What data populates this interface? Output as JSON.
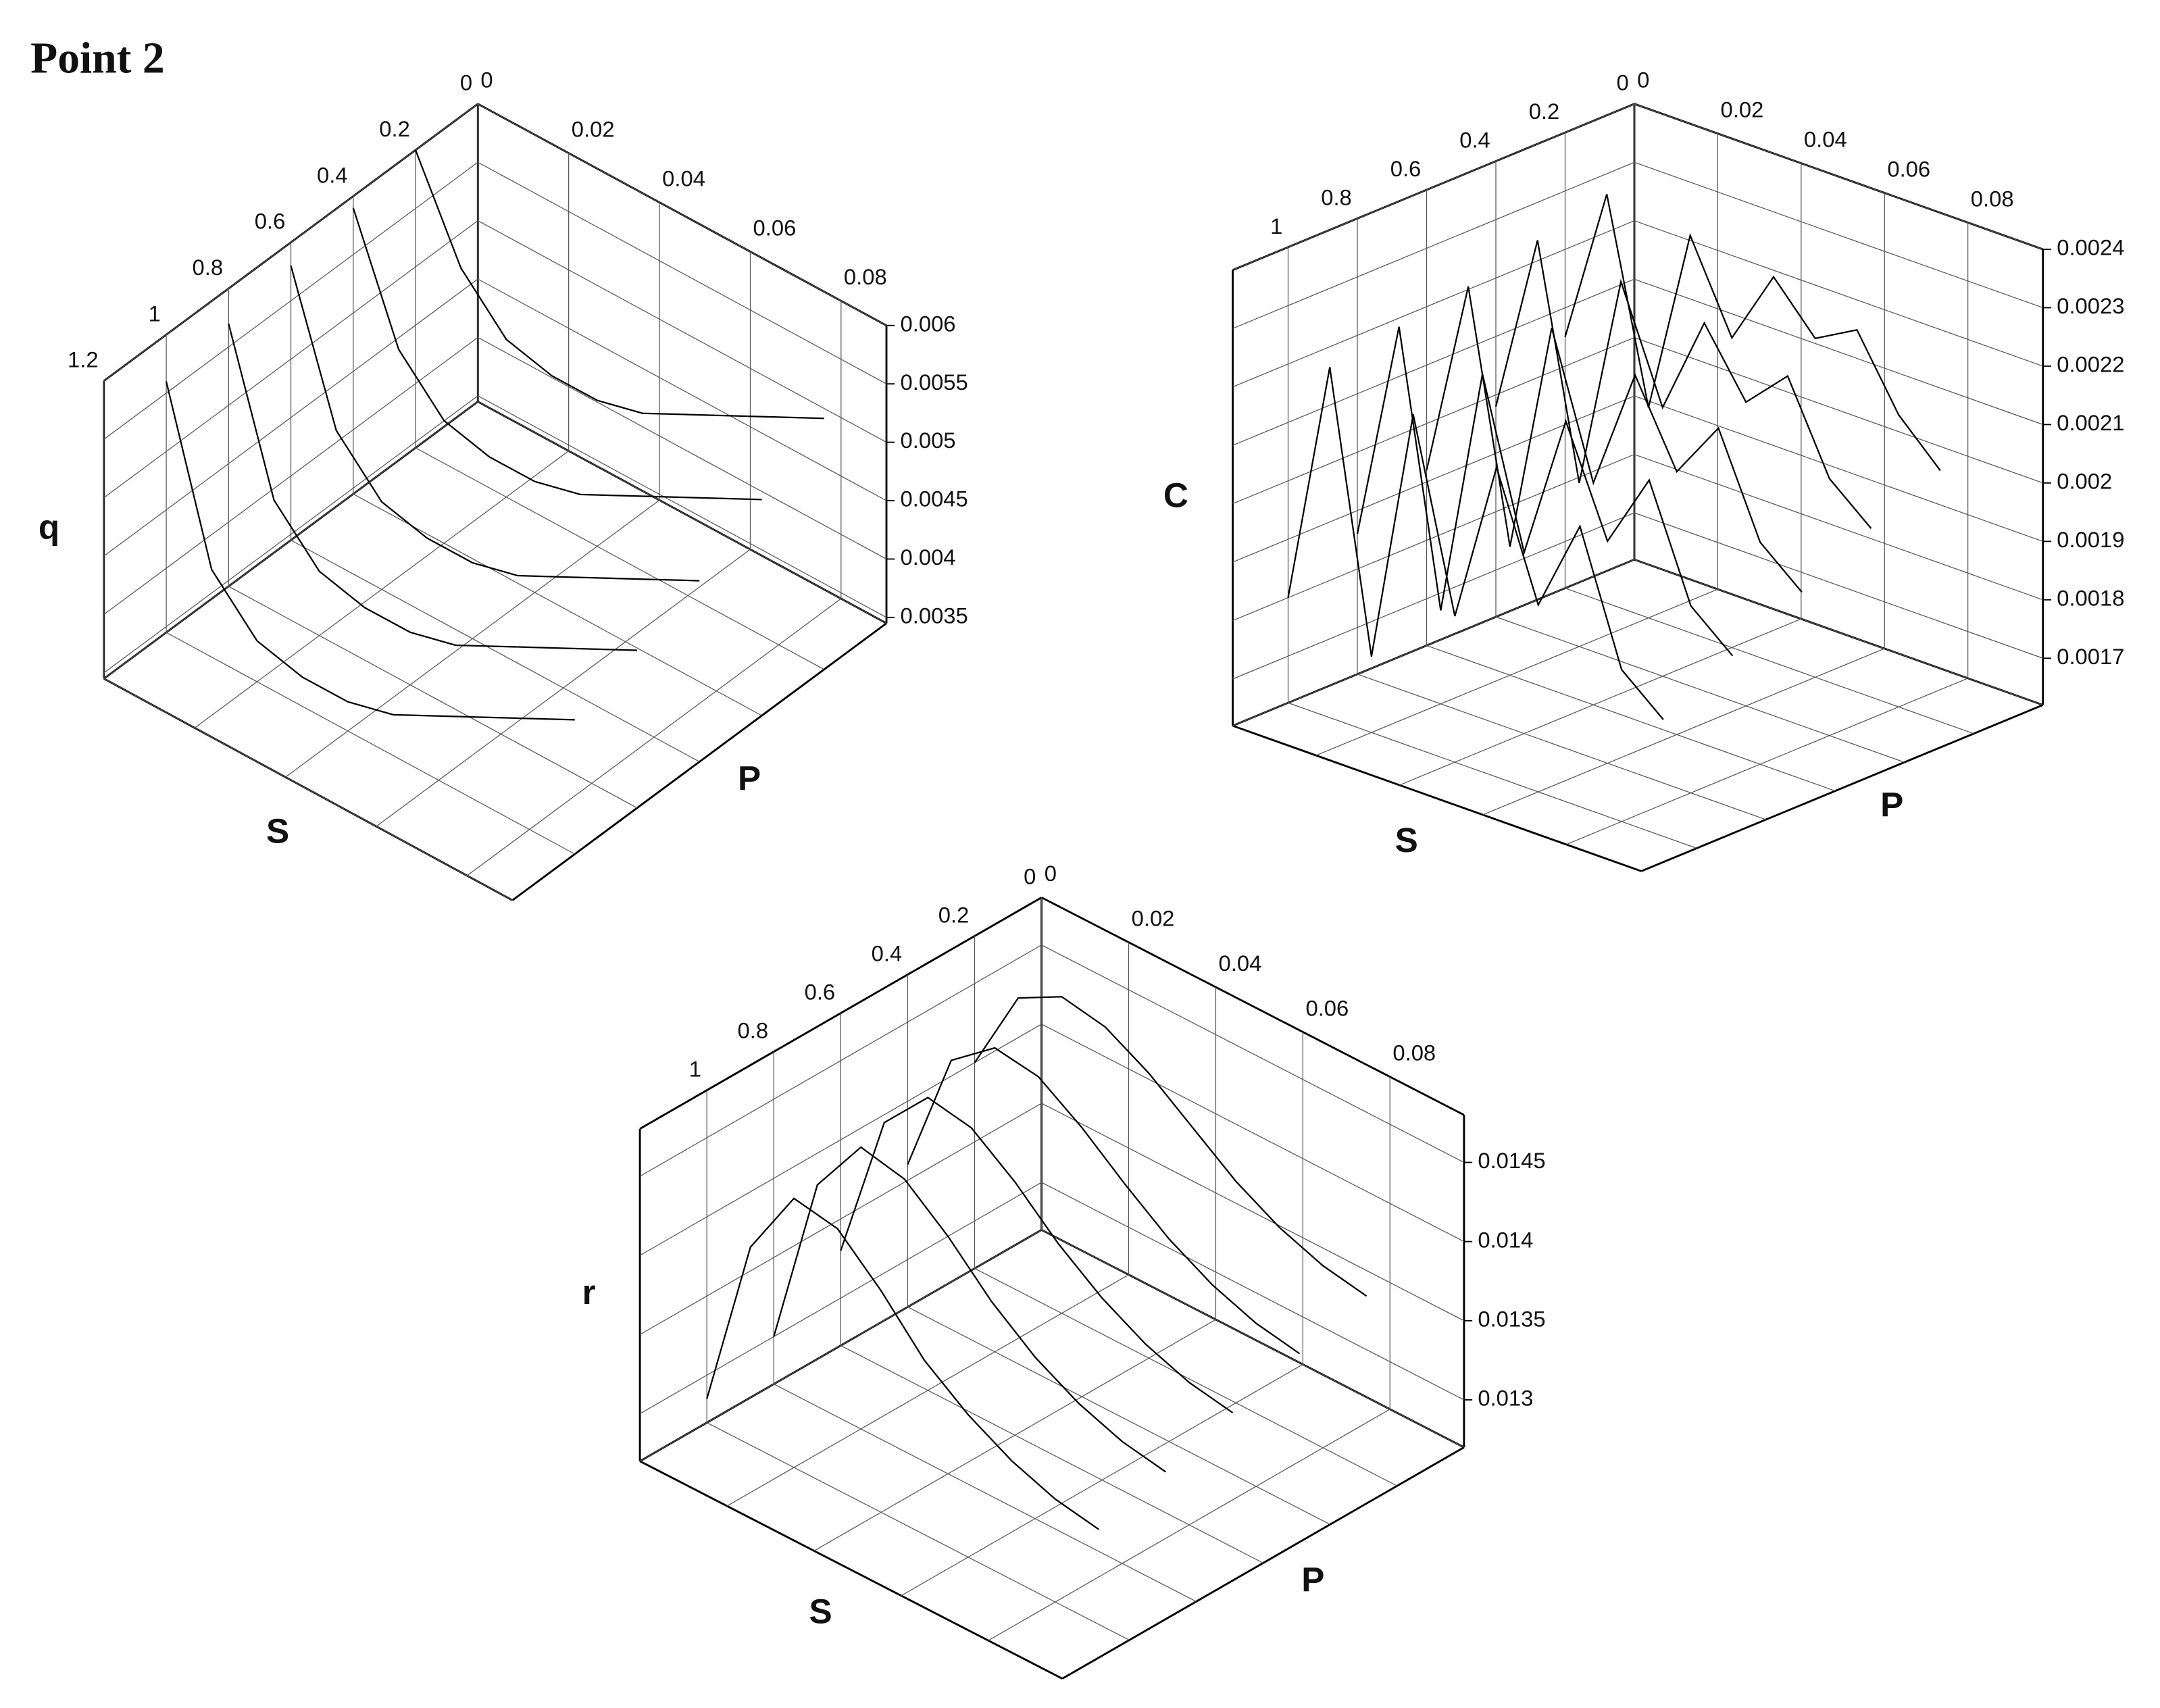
{
  "title": "Point 2",
  "chart_data": [
    {
      "type": "wireframe3d",
      "z_label": "q",
      "s_label": "S",
      "p_label": "P",
      "color": "#000000",
      "grid": true,
      "slim": [
        0,
        1.2
      ],
      "sticks": [
        0,
        0.2,
        0.4,
        0.6,
        0.8,
        1,
        1.2
      ],
      "plim": [
        0,
        0.09
      ],
      "pticks": [
        0,
        0.02,
        0.04,
        0.06,
        0.08
      ],
      "zlim": [
        0.00345,
        0.006
      ],
      "zticks": [
        0.0035,
        0.004,
        0.0045,
        0.005,
        0.0055,
        0.006
      ],
      "p": [
        0,
        0.01,
        0.02,
        0.03,
        0.04,
        0.05,
        0.06,
        0.07,
        0.08,
        0.09
      ],
      "s": [
        0.2,
        0.4,
        0.6,
        0.8,
        1
      ],
      "z": [
        [
          0.006,
          0.0052,
          0.0048,
          0.0047,
          0.0047,
          0.0048,
          0.005,
          0.0052,
          0.0054,
          0.0056
        ],
        [
          0.0059,
          0.0049,
          0.0045,
          0.0044,
          0.0044,
          0.0045,
          0.0047,
          0.0049,
          0.0051,
          0.0053
        ],
        [
          0.0058,
          0.0046,
          0.0042,
          0.0041,
          0.0041,
          0.0042,
          0.0044,
          0.0046,
          0.0048,
          0.005
        ],
        [
          0.0057,
          0.0044,
          0.004,
          0.0039,
          0.0039,
          0.004,
          0.0042,
          0.0044,
          0.0046,
          0.0048
        ],
        [
          0.0056,
          0.0042,
          0.0038,
          0.0037,
          0.0037,
          0.0038,
          0.004,
          0.0042,
          0.0044,
          0.0046
        ]
      ]
    },
    {
      "type": "wireframe3d",
      "z_label": "C",
      "s_label": "S",
      "p_label": "P",
      "color": "#000000",
      "grid": true,
      "slim": [
        0,
        1.16
      ],
      "sticks": [
        0,
        0.2,
        0.4,
        0.6,
        0.8,
        1
      ],
      "plim": [
        0,
        0.098
      ],
      "pticks": [
        0,
        0.02,
        0.04,
        0.06,
        0.08
      ],
      "zlim": [
        0.00162,
        0.0024
      ],
      "zticks": [
        0.0017,
        0.0018,
        0.0019,
        0.002,
        0.0021,
        0.0022,
        0.0023,
        0.0024
      ],
      "p": [
        0,
        0.01,
        0.02,
        0.03,
        0.04,
        0.05,
        0.06,
        0.07,
        0.08,
        0.09
      ],
      "s": [
        0.2,
        0.4,
        0.6,
        0.8,
        1
      ],
      "z": [
        [
          0.00205,
          0.00232,
          0.00198,
          0.0023,
          0.00215,
          0.00228,
          0.0022,
          0.00224,
          0.00212,
          0.00205
        ],
        [
          0.00198,
          0.00229,
          0.0019,
          0.00227,
          0.00208,
          0.00225,
          0.00214,
          0.00221,
          0.00206,
          0.002
        ],
        [
          0.00192,
          0.00226,
          0.00184,
          0.00224,
          0.002,
          0.00221,
          0.00207,
          0.00217,
          0.002,
          0.00194
        ],
        [
          0.00186,
          0.00224,
          0.00178,
          0.00221,
          0.00193,
          0.00218,
          0.002,
          0.00213,
          0.00194,
          0.00188
        ],
        [
          0.0018,
          0.00222,
          0.00175,
          0.00219,
          0.00187,
          0.00215,
          0.00194,
          0.0021,
          0.00188,
          0.00182
        ]
      ]
    },
    {
      "type": "wireframe3d",
      "z_label": "r",
      "s_label": "S",
      "p_label": "P",
      "color": "#000000",
      "grid": true,
      "slim": [
        0,
        1.2
      ],
      "sticks": [
        0,
        0.2,
        0.4,
        0.6,
        0.8,
        1
      ],
      "plim": [
        0,
        0.097
      ],
      "pticks": [
        0,
        0.02,
        0.04,
        0.06,
        0.08
      ],
      "zlim": [
        0.0127,
        0.0148
      ],
      "zticks": [
        0.013,
        0.0135,
        0.014,
        0.0145
      ],
      "p": [
        0,
        0.01,
        0.02,
        0.03,
        0.04,
        0.05,
        0.06,
        0.07,
        0.08,
        0.09
      ],
      "s": [
        0.2,
        0.4,
        0.6,
        0.8,
        1
      ],
      "z": [
        [
          0.014,
          0.01455,
          0.0147,
          0.01465,
          0.0145,
          0.0143,
          0.0141,
          0.01395,
          0.01385,
          0.0138
        ],
        [
          0.0136,
          0.0144,
          0.01462,
          0.01458,
          0.0144,
          0.01418,
          0.01398,
          0.01383,
          0.01373,
          0.01368
        ],
        [
          0.0133,
          0.01425,
          0.01455,
          0.0145,
          0.0143,
          0.01405,
          0.01385,
          0.0137,
          0.0136,
          0.01355
        ],
        [
          0.013,
          0.0141,
          0.01448,
          0.01442,
          0.0142,
          0.01393,
          0.01372,
          0.01357,
          0.01347,
          0.01342
        ],
        [
          0.01285,
          0.01395,
          0.0144,
          0.01435,
          0.0141,
          0.0138,
          0.0136,
          0.01345,
          0.01335,
          0.0133
        ]
      ]
    }
  ]
}
